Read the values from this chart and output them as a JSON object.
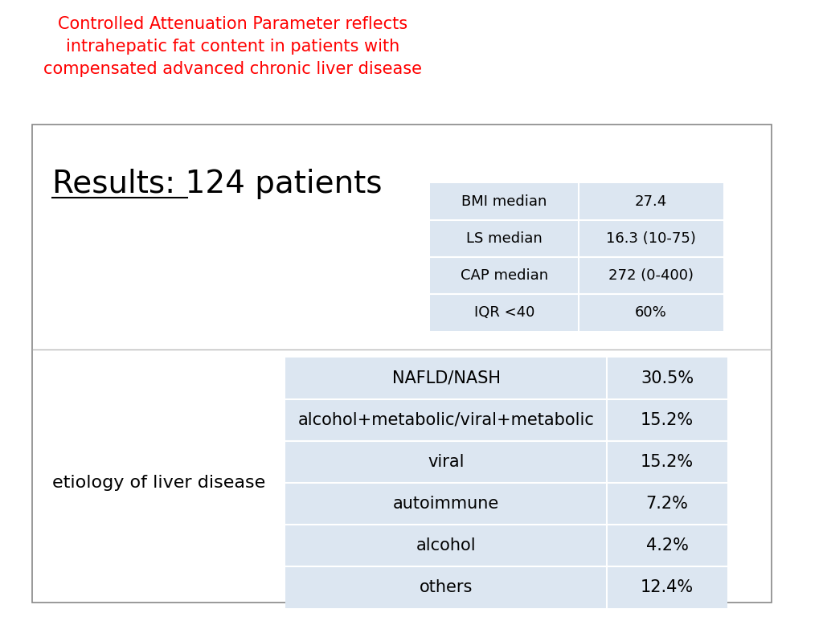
{
  "title_lines": [
    "Controlled Attenuation Parameter reflects",
    "intrahepatic fat content in patients with",
    "compensated advanced chronic liver disease"
  ],
  "title_color": "#FF0000",
  "title_fontsize": 15,
  "results_label_underlined": "Results: ",
  "results_label_rest": "124 patients",
  "results_fontsize": 28,
  "table1_data": [
    [
      "BMI median",
      "27.4"
    ],
    [
      "LS median",
      "16.3 (10-75)"
    ],
    [
      "CAP median",
      "272 (0-400)"
    ],
    [
      "IQR <40",
      "60%"
    ]
  ],
  "table2_label": "etiology of liver disease",
  "table2_label_fontsize": 16,
  "table2_data": [
    [
      "NAFLD/NASH",
      "30.5%"
    ],
    [
      "alcohol+metabolic/viral+metabolic",
      "15.2%"
    ],
    [
      "viral",
      "15.2%"
    ],
    [
      "autoimmune",
      "7.2%"
    ],
    [
      "alcohol",
      "4.2%"
    ],
    [
      "others",
      "12.4%"
    ]
  ],
  "table_bg_color": "#dce6f1",
  "table_text_color": "#000000",
  "table1_fontsize": 13,
  "table2_fontsize": 15,
  "outer_box_color": "#888888",
  "bg_color": "#ffffff"
}
